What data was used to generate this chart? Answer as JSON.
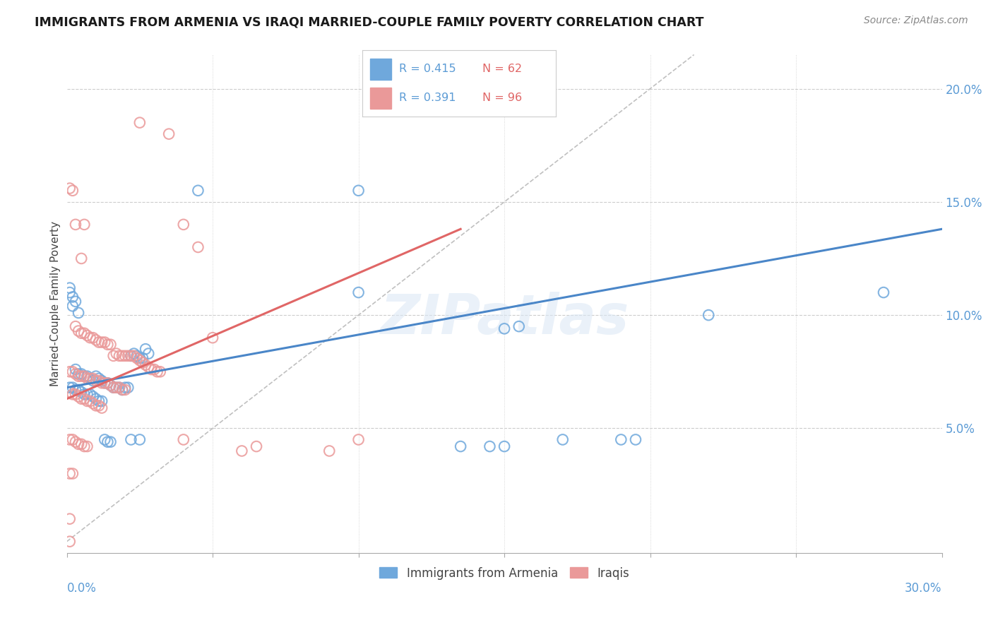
{
  "title": "IMMIGRANTS FROM ARMENIA VS IRAQI MARRIED-COUPLE FAMILY POVERTY CORRELATION CHART",
  "source": "Source: ZipAtlas.com",
  "ylabel": "Married-Couple Family Poverty",
  "legend_label_blue": "Immigrants from Armenia",
  "legend_label_pink": "Iraqis",
  "color_blue": "#6fa8dc",
  "color_pink": "#ea9999",
  "color_blue_line": "#4a86c8",
  "color_pink_line": "#e06666",
  "color_diag": "#c0c0c0",
  "watermark": "ZIPatlas",
  "xmin": 0.0,
  "xmax": 0.3,
  "ymin": -0.005,
  "ymax": 0.215,
  "blue_line_x": [
    0.0,
    0.3
  ],
  "blue_line_y": [
    0.068,
    0.138
  ],
  "pink_line_x": [
    0.0,
    0.135
  ],
  "pink_line_y": [
    0.063,
    0.138
  ],
  "diag_line_x": [
    0.0,
    0.215
  ],
  "diag_line_y": [
    0.0,
    0.215
  ],
  "blue_dots": [
    [
      0.001,
      0.112
    ],
    [
      0.002,
      0.104
    ],
    [
      0.003,
      0.106
    ],
    [
      0.004,
      0.101
    ],
    [
      0.001,
      0.11
    ],
    [
      0.002,
      0.108
    ],
    [
      0.003,
      0.076
    ],
    [
      0.004,
      0.074
    ],
    [
      0.005,
      0.074
    ],
    [
      0.006,
      0.073
    ],
    [
      0.007,
      0.073
    ],
    [
      0.008,
      0.072
    ],
    [
      0.009,
      0.071
    ],
    [
      0.01,
      0.073
    ],
    [
      0.011,
      0.072
    ],
    [
      0.012,
      0.071
    ],
    [
      0.013,
      0.07
    ],
    [
      0.014,
      0.07
    ],
    [
      0.015,
      0.069
    ],
    [
      0.016,
      0.068
    ],
    [
      0.017,
      0.068
    ],
    [
      0.018,
      0.068
    ],
    [
      0.019,
      0.067
    ],
    [
      0.02,
      0.068
    ],
    [
      0.021,
      0.068
    ],
    [
      0.022,
      0.082
    ],
    [
      0.023,
      0.083
    ],
    [
      0.024,
      0.082
    ],
    [
      0.025,
      0.081
    ],
    [
      0.026,
      0.081
    ],
    [
      0.027,
      0.085
    ],
    [
      0.028,
      0.083
    ],
    [
      0.001,
      0.068
    ],
    [
      0.002,
      0.068
    ],
    [
      0.003,
      0.067
    ],
    [
      0.004,
      0.067
    ],
    [
      0.005,
      0.066
    ],
    [
      0.006,
      0.065
    ],
    [
      0.007,
      0.065
    ],
    [
      0.008,
      0.065
    ],
    [
      0.009,
      0.064
    ],
    [
      0.01,
      0.063
    ],
    [
      0.011,
      0.062
    ],
    [
      0.012,
      0.062
    ],
    [
      0.013,
      0.045
    ],
    [
      0.014,
      0.044
    ],
    [
      0.015,
      0.044
    ],
    [
      0.022,
      0.045
    ],
    [
      0.025,
      0.045
    ],
    [
      0.045,
      0.155
    ],
    [
      0.1,
      0.155
    ],
    [
      0.1,
      0.11
    ],
    [
      0.135,
      0.042
    ],
    [
      0.145,
      0.042
    ],
    [
      0.15,
      0.094
    ],
    [
      0.155,
      0.095
    ],
    [
      0.17,
      0.045
    ],
    [
      0.19,
      0.045
    ],
    [
      0.22,
      0.1
    ],
    [
      0.28,
      0.11
    ],
    [
      0.15,
      0.042
    ],
    [
      0.195,
      0.045
    ]
  ],
  "pink_dots": [
    [
      0.001,
      0.156
    ],
    [
      0.002,
      0.155
    ],
    [
      0.003,
      0.14
    ],
    [
      0.005,
      0.125
    ],
    [
      0.006,
      0.14
    ],
    [
      0.003,
      0.095
    ],
    [
      0.004,
      0.093
    ],
    [
      0.005,
      0.092
    ],
    [
      0.006,
      0.092
    ],
    [
      0.007,
      0.091
    ],
    [
      0.008,
      0.09
    ],
    [
      0.009,
      0.09
    ],
    [
      0.01,
      0.089
    ],
    [
      0.011,
      0.088
    ],
    [
      0.012,
      0.088
    ],
    [
      0.013,
      0.088
    ],
    [
      0.014,
      0.087
    ],
    [
      0.015,
      0.087
    ],
    [
      0.016,
      0.082
    ],
    [
      0.017,
      0.083
    ],
    [
      0.018,
      0.082
    ],
    [
      0.019,
      0.082
    ],
    [
      0.02,
      0.082
    ],
    [
      0.021,
      0.082
    ],
    [
      0.022,
      0.082
    ],
    [
      0.023,
      0.082
    ],
    [
      0.024,
      0.081
    ],
    [
      0.025,
      0.08
    ],
    [
      0.026,
      0.079
    ],
    [
      0.027,
      0.078
    ],
    [
      0.028,
      0.077
    ],
    [
      0.029,
      0.076
    ],
    [
      0.03,
      0.076
    ],
    [
      0.031,
      0.075
    ],
    [
      0.032,
      0.075
    ],
    [
      0.001,
      0.075
    ],
    [
      0.002,
      0.075
    ],
    [
      0.003,
      0.074
    ],
    [
      0.004,
      0.073
    ],
    [
      0.005,
      0.073
    ],
    [
      0.006,
      0.073
    ],
    [
      0.007,
      0.072
    ],
    [
      0.008,
      0.072
    ],
    [
      0.009,
      0.072
    ],
    [
      0.01,
      0.071
    ],
    [
      0.011,
      0.071
    ],
    [
      0.012,
      0.07
    ],
    [
      0.013,
      0.07
    ],
    [
      0.014,
      0.07
    ],
    [
      0.015,
      0.069
    ],
    [
      0.016,
      0.068
    ],
    [
      0.017,
      0.068
    ],
    [
      0.018,
      0.068
    ],
    [
      0.019,
      0.067
    ],
    [
      0.02,
      0.067
    ],
    [
      0.001,
      0.066
    ],
    [
      0.002,
      0.065
    ],
    [
      0.003,
      0.065
    ],
    [
      0.004,
      0.064
    ],
    [
      0.005,
      0.063
    ],
    [
      0.006,
      0.063
    ],
    [
      0.007,
      0.062
    ],
    [
      0.008,
      0.062
    ],
    [
      0.009,
      0.061
    ],
    [
      0.01,
      0.06
    ],
    [
      0.011,
      0.06
    ],
    [
      0.012,
      0.059
    ],
    [
      0.001,
      0.045
    ],
    [
      0.002,
      0.045
    ],
    [
      0.003,
      0.044
    ],
    [
      0.004,
      0.043
    ],
    [
      0.005,
      0.043
    ],
    [
      0.006,
      0.042
    ],
    [
      0.007,
      0.042
    ],
    [
      0.001,
      0.03
    ],
    [
      0.002,
      0.03
    ],
    [
      0.001,
      0.01
    ],
    [
      0.001,
      0.0
    ],
    [
      0.025,
      0.185
    ],
    [
      0.035,
      0.18
    ],
    [
      0.04,
      0.14
    ],
    [
      0.045,
      0.13
    ],
    [
      0.05,
      0.09
    ],
    [
      0.04,
      0.045
    ],
    [
      0.09,
      0.04
    ],
    [
      0.1,
      0.045
    ],
    [
      0.06,
      0.04
    ],
    [
      0.065,
      0.042
    ]
  ]
}
